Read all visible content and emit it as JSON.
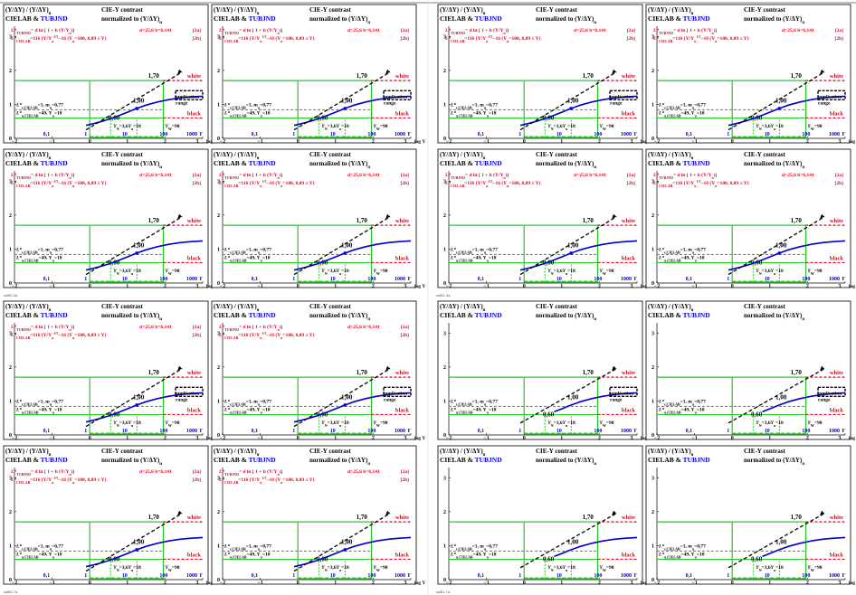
{
  "page": {
    "footers": [
      "ssf80-3a",
      "ssf81-3a",
      "ssf80-7a",
      "ssf81-7a"
    ]
  },
  "colors": {
    "black": "#000000",
    "red": "#e8001c",
    "blue": "#0000cc",
    "green": "#22cc22",
    "gray": "#808080"
  },
  "chart_data": {
    "type": "line",
    "panel_count": 16,
    "variants": [
      {
        "id": "a",
        "description_marks": "TUBJND curve, CIELAB arrow, application range legend",
        "show_equations": true,
        "show_curves": true,
        "show_app_range": true
      },
      {
        "id": "b",
        "show_equations": true,
        "show_curves": true,
        "show_app_range": false
      },
      {
        "id": "c",
        "show_equations": false,
        "show_curves": false,
        "show_app_range": true
      },
      {
        "id": "d",
        "show_equations": false,
        "show_curves": false,
        "show_app_range": false
      }
    ],
    "panel_variant": [
      "a",
      "a",
      "a",
      "a",
      "b",
      "b",
      "b",
      "b",
      "a",
      "a",
      "c",
      "c",
      "b",
      "b",
      "d",
      "d"
    ],
    "title": {
      "line1_left": "(Y/ΔY) / (Y/ΔY)",
      "line1_sub": "u",
      "line1_right": "CIE-Y contrast",
      "line2_left_black": "CIELAB & ",
      "line2_left_blue": "TUBJND",
      "line2_right": "normalized to (Y/ΔY)",
      "line2_right_sub": "u"
    },
    "equations": {
      "eq1_lhs": "L*",
      "eq1_lhs_sub": "TUBJND",
      "eq1_rhs": "= d ln [ 1 + b (Y/Y",
      "eq1_rhs_sub": "u",
      "eq1_rhs_end": ")]",
      "eq1_params": "d=25,6    b=6,141",
      "eq1_tag": "[2a]",
      "eq2_lhs": "L*",
      "eq2_lhs_sub": "CIELAB",
      "eq2_rhs": "=116 (Y/Y",
      "eq2_rhs_sub": "u",
      "eq2_exp": "1/3",
      "eq2_rhs_end": "−16   (Y",
      "eq2_cond": "=100, 0,89 ≤ Y)",
      "eq2_tag": "[2b]"
    },
    "labels": {
      "white": "white",
      "black": "black",
      "app_range_1": "application",
      "app_range_2": "range",
      "val_170": "1,70",
      "val_100": "1,00",
      "val_060": "0,60",
      "lr_cielab": "L*",
      "lr_cielab_sub": "r,CIELAB",
      "lr_cielab_val": "=1, m",
      "lr_cielab_m_sub": "u",
      "lr_cielab_mval": "=0,77",
      "lu_cielab": "L*",
      "lu_cielab_sub": "u,CIELAB",
      "lu_cielab_val": "=49, Y",
      "lu_y_sub": "u",
      "lu_y_val": "=18",
      "yn_text": "Y",
      "yn_sub": "N",
      "yn_val": "=3,6",
      "yu_sub": "u",
      "yu_val": "=18",
      "yw_text": "Y",
      "yw_sub": "W",
      "yw_val": "=90"
    },
    "x_axis": {
      "label": "log Y",
      "ticks": [
        -2,
        -1,
        0,
        1,
        2,
        3
      ],
      "tick_labels": [
        "−2",
        "−1",
        "0",
        "1",
        "2",
        "3"
      ],
      "secondary_ticks": [
        "0,1",
        "1",
        "10",
        "100",
        "1000"
      ],
      "secondary_label": "Y",
      "xlim": [
        -2,
        3
      ]
    },
    "y_axis": {
      "ticks": [
        0,
        1,
        2,
        3
      ],
      "tick_labels": [
        "0",
        "1",
        "2",
        "3"
      ],
      "ylim": [
        0,
        3.3
      ]
    },
    "markers": {
      "white_level": 1.7,
      "black_level": 0.6,
      "ref_level": 1.0,
      "gray_level": 1.0,
      "x_yn": 0.556,
      "x_yu": 1.255,
      "x_yw": 1.954
    },
    "series": [
      {
        "name": "TUBJND",
        "x": [
          -0.1,
          0.2,
          0.5,
          0.8,
          1.0,
          1.25,
          1.5,
          1.8,
          2.1,
          2.4,
          2.7,
          3.0
        ],
        "values": [
          0.38,
          0.46,
          0.56,
          0.68,
          0.77,
          0.88,
          0.98,
          1.07,
          1.14,
          1.19,
          1.22,
          1.24
        ]
      },
      {
        "name": "CIELAB",
        "x": [
          -0.1,
          2.45
        ],
        "values": [
          0.25,
          1.95
        ]
      }
    ]
  }
}
